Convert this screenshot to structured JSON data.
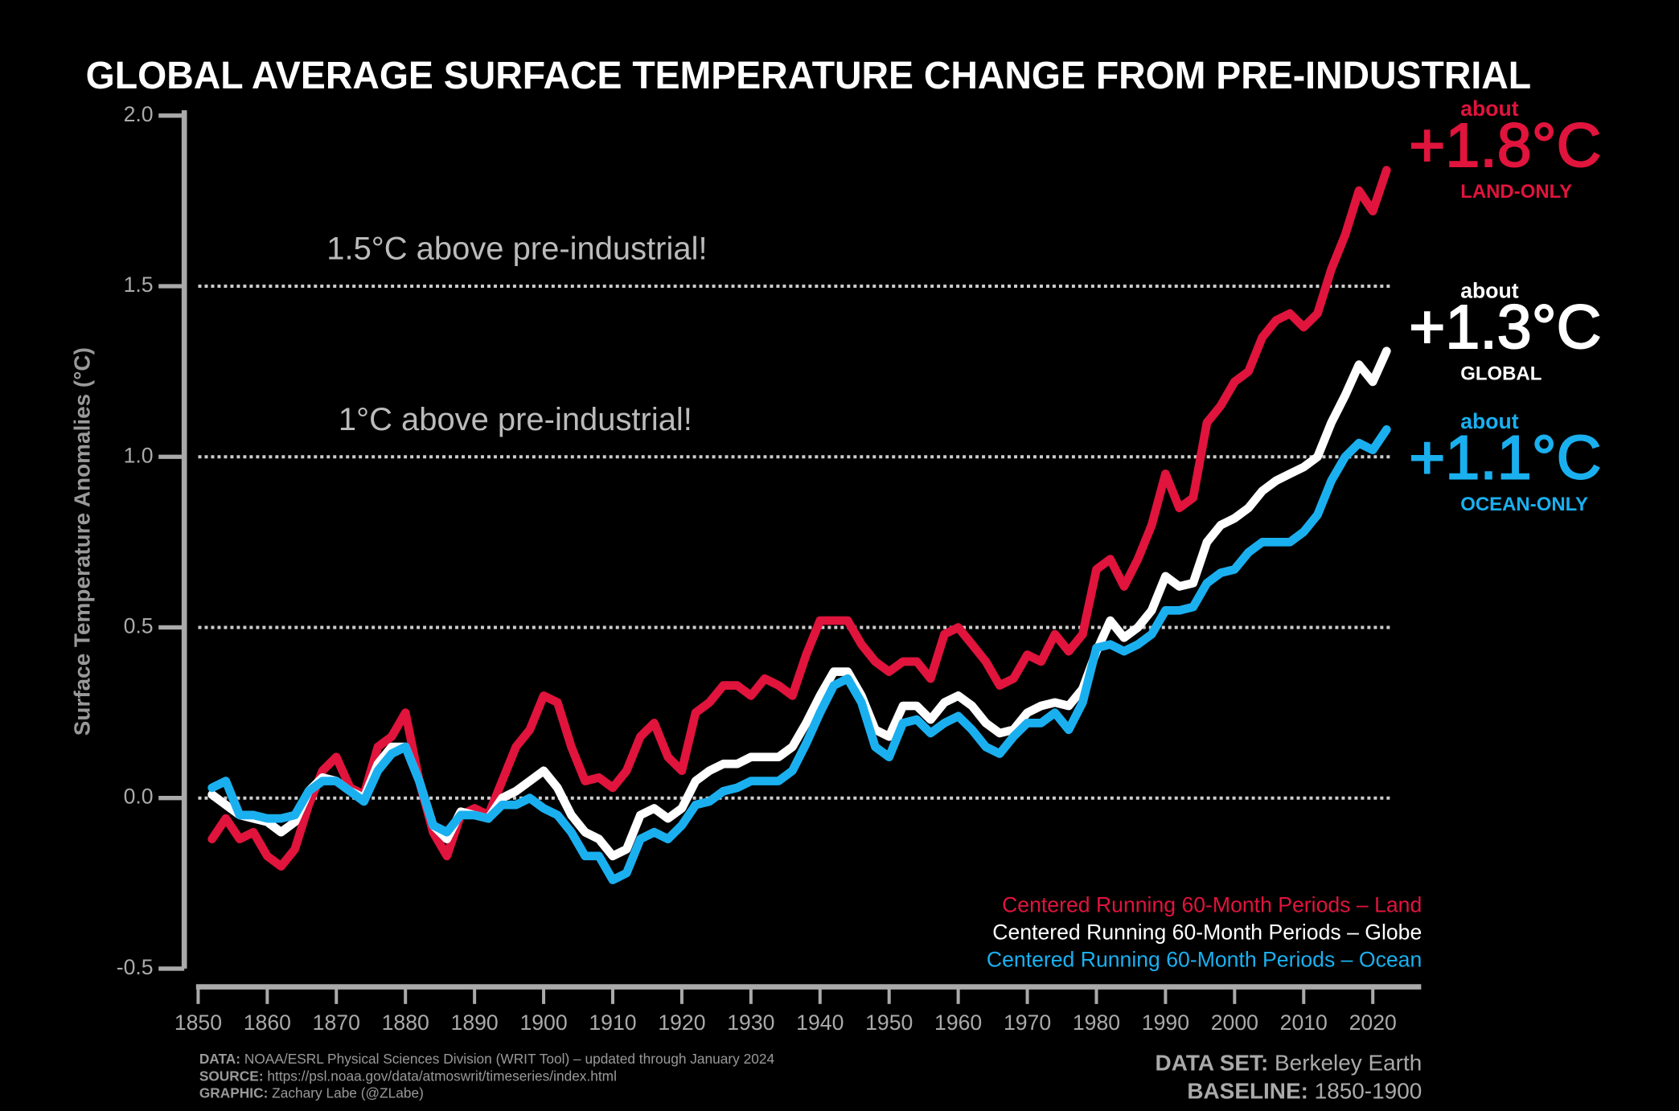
{
  "chart_data": {
    "type": "line",
    "title": "GLOBAL AVERAGE SURFACE TEMPERATURE CHANGE FROM PRE-INDUSTRIAL",
    "y_label": "Surface Temperature Anomalies (°C)",
    "annotations": [
      "1.5°C above pre-industrial!",
      "1°C above pre-industrial!"
    ],
    "annotation_values": [
      1.5,
      1.0
    ],
    "xlim": [
      1849,
      2027
    ],
    "ylim": [
      -0.5,
      2.0
    ],
    "xticks": [
      1850,
      1860,
      1870,
      1880,
      1890,
      1900,
      1910,
      1920,
      1930,
      1940,
      1950,
      1960,
      1970,
      1980,
      1990,
      2000,
      2010,
      2020
    ],
    "yticks": [
      -0.5,
      {
        "value": 0,
        "label": "0.0"
      },
      0.5,
      {
        "value": 1,
        "label": "1.0"
      },
      1.5,
      {
        "value": 2,
        "label": "2.0"
      }
    ],
    "grid": true,
    "x": [
      1852,
      1854,
      1856,
      1858,
      1860,
      1862,
      1864,
      1866,
      1868,
      1870,
      1872,
      1874,
      1876,
      1878,
      1880,
      1882,
      1884,
      1886,
      1888,
      1890,
      1892,
      1894,
      1896,
      1898,
      1900,
      1902,
      1904,
      1906,
      1908,
      1910,
      1912,
      1914,
      1916,
      1918,
      1920,
      1922,
      1924,
      1926,
      1928,
      1930,
      1932,
      1934,
      1936,
      1938,
      1940,
      1942,
      1944,
      1946,
      1948,
      1950,
      1952,
      1954,
      1956,
      1958,
      1960,
      1962,
      1964,
      1966,
      1968,
      1970,
      1972,
      1974,
      1976,
      1978,
      1980,
      1982,
      1984,
      1986,
      1988,
      1990,
      1992,
      1994,
      1996,
      1998,
      2000,
      2002,
      2004,
      2006,
      2008,
      2010,
      2012,
      2014,
      2016,
      2018,
      2020,
      2022
    ],
    "series": [
      {
        "name": "Centered Running 60-Month Periods – Land",
        "color": "#e0143c",
        "callout": {
          "about": "about",
          "value": "+1.8°C",
          "label": "LAND-ONLY"
        },
        "values": [
          -0.12,
          -0.06,
          -0.12,
          -0.1,
          -0.17,
          -0.2,
          -0.15,
          -0.02,
          0.08,
          0.12,
          0.03,
          0.01,
          0.15,
          0.18,
          0.25,
          0.05,
          -0.1,
          -0.17,
          -0.05,
          -0.03,
          -0.05,
          0.05,
          0.15,
          0.2,
          0.3,
          0.28,
          0.15,
          0.05,
          0.06,
          0.03,
          0.08,
          0.18,
          0.22,
          0.12,
          0.08,
          0.25,
          0.28,
          0.33,
          0.33,
          0.3,
          0.35,
          0.33,
          0.3,
          0.42,
          0.52,
          0.52,
          0.52,
          0.45,
          0.4,
          0.37,
          0.4,
          0.4,
          0.35,
          0.48,
          0.5,
          0.45,
          0.4,
          0.33,
          0.35,
          0.42,
          0.4,
          0.48,
          0.43,
          0.48,
          0.67,
          0.7,
          0.62,
          0.7,
          0.8,
          0.95,
          0.85,
          0.88,
          1.1,
          1.15,
          1.22,
          1.25,
          1.35,
          1.4,
          1.42,
          1.38,
          1.42,
          1.55,
          1.65,
          1.78,
          1.72,
          1.84
        ]
      },
      {
        "name": "Centered Running 60-Month Periods – Globe",
        "color": "#ffffff",
        "callout": {
          "about": "about",
          "value": "+1.3°C",
          "label": "GLOBAL"
        },
        "values": [
          0.01,
          -0.02,
          -0.05,
          -0.06,
          -0.07,
          -0.1,
          -0.07,
          0.02,
          0.06,
          0.05,
          0.02,
          0.0,
          0.1,
          0.15,
          0.15,
          0.05,
          -0.08,
          -0.12,
          -0.04,
          -0.05,
          -0.06,
          0.0,
          0.02,
          0.05,
          0.08,
          0.03,
          -0.05,
          -0.1,
          -0.12,
          -0.17,
          -0.15,
          -0.05,
          -0.03,
          -0.06,
          -0.03,
          0.05,
          0.08,
          0.1,
          0.1,
          0.12,
          0.12,
          0.12,
          0.15,
          0.22,
          0.3,
          0.37,
          0.37,
          0.3,
          0.2,
          0.18,
          0.27,
          0.27,
          0.23,
          0.28,
          0.3,
          0.27,
          0.22,
          0.19,
          0.2,
          0.25,
          0.27,
          0.28,
          0.27,
          0.32,
          0.43,
          0.52,
          0.47,
          0.5,
          0.55,
          0.65,
          0.62,
          0.63,
          0.75,
          0.8,
          0.82,
          0.85,
          0.9,
          0.93,
          0.95,
          0.97,
          1.0,
          1.1,
          1.18,
          1.27,
          1.22,
          1.31
        ]
      },
      {
        "name": "Centered Running 60-Month Periods – Ocean",
        "color": "#1ab0f0",
        "callout": {
          "about": "about",
          "value": "+1.1°C",
          "label": "OCEAN-ONLY"
        },
        "values": [
          0.03,
          0.05,
          -0.05,
          -0.05,
          -0.06,
          -0.06,
          -0.05,
          0.02,
          0.05,
          0.05,
          0.02,
          -0.01,
          0.08,
          0.13,
          0.15,
          0.05,
          -0.08,
          -0.1,
          -0.05,
          -0.05,
          -0.06,
          -0.02,
          -0.02,
          0.0,
          -0.03,
          -0.05,
          -0.1,
          -0.17,
          -0.17,
          -0.24,
          -0.22,
          -0.12,
          -0.1,
          -0.12,
          -0.08,
          -0.02,
          -0.01,
          0.02,
          0.03,
          0.05,
          0.05,
          0.05,
          0.08,
          0.16,
          0.25,
          0.33,
          0.35,
          0.28,
          0.15,
          0.12,
          0.22,
          0.23,
          0.19,
          0.22,
          0.24,
          0.2,
          0.15,
          0.13,
          0.18,
          0.22,
          0.22,
          0.25,
          0.2,
          0.28,
          0.44,
          0.45,
          0.43,
          0.45,
          0.48,
          0.55,
          0.55,
          0.56,
          0.63,
          0.66,
          0.67,
          0.72,
          0.75,
          0.75,
          0.75,
          0.78,
          0.83,
          0.93,
          1.0,
          1.04,
          1.02,
          1.08
        ]
      }
    ],
    "footer": [
      {
        "label": "DATA:",
        "text": "NOAA/ESRL Physical Sciences Division (WRIT Tool) – updated through January 2024"
      },
      {
        "label": "SOURCE:",
        "text": "https://psl.noaa.gov/data/atmoswrit/timeseries/index.html"
      },
      {
        "label": "GRAPHIC:",
        "text": "Zachary Labe (@ZLabe)"
      }
    ],
    "dataset": {
      "label": "DATA SET:",
      "text": "Berkeley Earth"
    },
    "baseline": {
      "label": "BASELINE:",
      "text": "1850-1900"
    }
  }
}
